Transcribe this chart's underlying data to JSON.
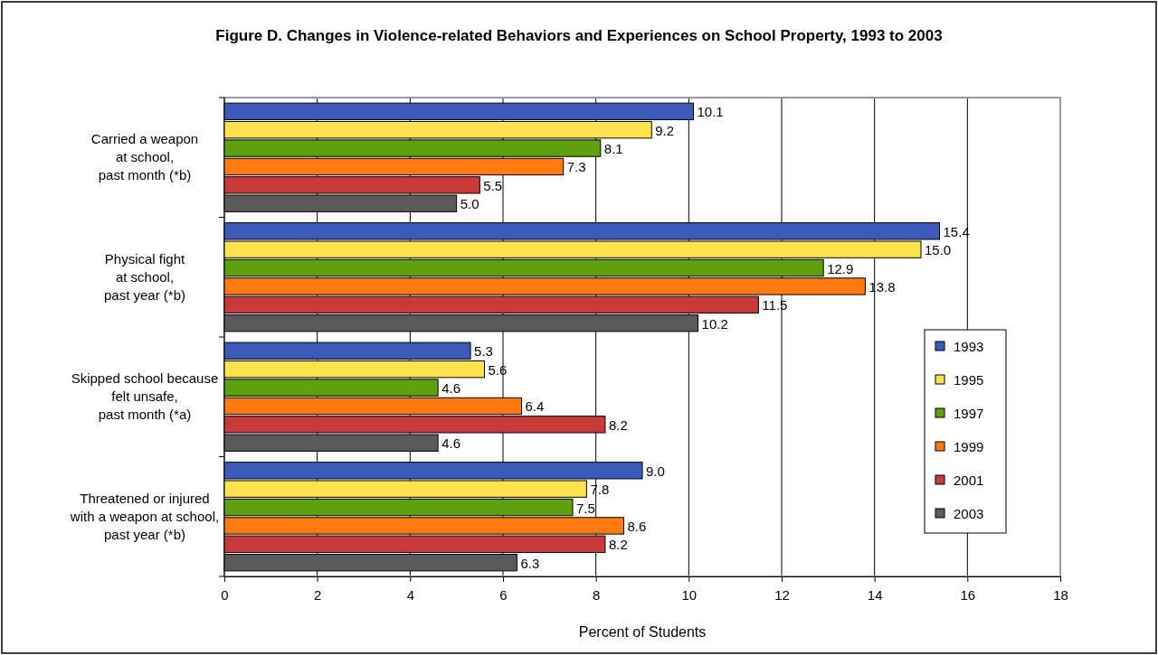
{
  "chart_data": {
    "type": "bar",
    "orientation": "horizontal",
    "title": "Figure D. Changes in Violence-related Behaviors and Experiences on School Property, 1993 to 2003",
    "xlabel": "Percent  of Students",
    "categories": [
      "Carried a weapon\nat school,\npast month (*b)",
      "Physical fight\nat school,\npast year (*b)",
      "Skipped school because\nfelt unsafe,\npast month (*a)",
      "Threatened or injured\nwith a weapon at school,\npast year (*b)"
    ],
    "series": [
      {
        "name": "1993",
        "color": "#3c5bb8",
        "values": [
          10.1,
          15.4,
          5.3,
          9.0
        ],
        "value_labels": [
          "10.1",
          "15.4",
          "5.3",
          "9.0"
        ]
      },
      {
        "name": "1995",
        "color": "#ffe34d",
        "values": [
          9.2,
          15.0,
          5.6,
          7.8
        ],
        "value_labels": [
          "9.2",
          "15.0",
          "5.6",
          "7.8"
        ]
      },
      {
        "name": "1997",
        "color": "#5fa010",
        "values": [
          8.1,
          12.9,
          4.6,
          7.5
        ],
        "value_labels": [
          "8.1",
          "12.9",
          "4.6",
          "7.5"
        ]
      },
      {
        "name": "1999",
        "color": "#ff7a10",
        "values": [
          7.3,
          13.8,
          6.4,
          8.6
        ],
        "value_labels": [
          "7.3",
          "13.8",
          "6.4",
          "8.6"
        ]
      },
      {
        "name": "2001",
        "color": "#c83a3a",
        "values": [
          5.5,
          11.5,
          8.2,
          8.2
        ],
        "value_labels": [
          "5.5",
          "11.5",
          "8.2",
          "8.2"
        ]
      },
      {
        "name": "2003",
        "color": "#5a5a5a",
        "values": [
          5.0,
          10.2,
          4.6,
          6.3
        ],
        "value_labels": [
          "5.0",
          "10.2",
          "4.6",
          "6.3"
        ]
      }
    ],
    "xlim": [
      0,
      18
    ],
    "xticks": [
      0,
      2,
      4,
      6,
      8,
      10,
      12,
      14,
      16,
      18
    ],
    "grid": "x",
    "legend": "right"
  }
}
